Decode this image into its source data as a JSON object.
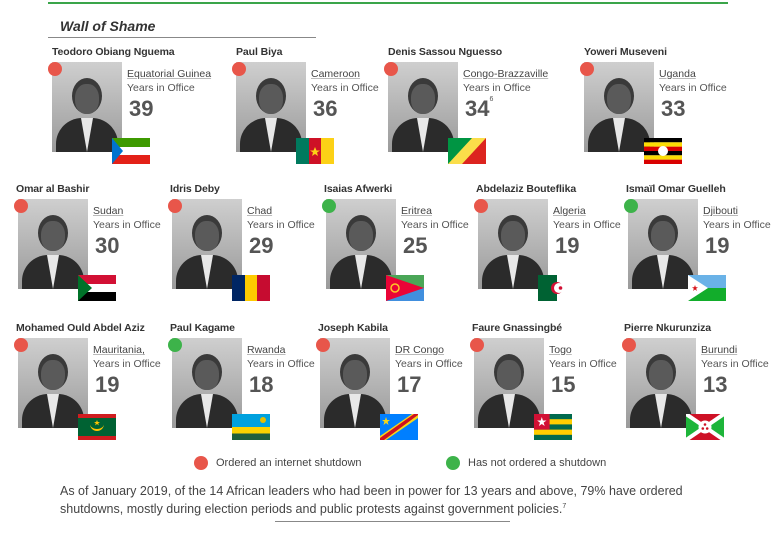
{
  "section_title": "Wall of Shame",
  "labels": {
    "years_in_office": "Years in Office"
  },
  "colors": {
    "shutdown": "#e8564a",
    "no_shutdown": "#3db34a",
    "rule": "#3aa54a"
  },
  "leaders": [
    {
      "name": "Teodoro Obiang Nguema",
      "country": "Equatorial Guinea",
      "years": "39",
      "note": "",
      "status": "shutdown",
      "flag": "equatorial-guinea"
    },
    {
      "name": "Paul Biya",
      "country": "Cameroon",
      "years": "36",
      "note": "",
      "status": "shutdown",
      "flag": "cameroon"
    },
    {
      "name": "Denis Sassou Nguesso",
      "country": "Congo-Brazzaville",
      "years": "34",
      "note": "6",
      "status": "shutdown",
      "flag": "congo"
    },
    {
      "name": "Yoweri Museveni",
      "country": "Uganda",
      "years": "33",
      "note": "",
      "status": "shutdown",
      "flag": "uganda"
    },
    {
      "name": "Omar al Bashir",
      "country": "Sudan",
      "years": "30",
      "note": "",
      "status": "shutdown",
      "flag": "sudan"
    },
    {
      "name": "Idris Deby",
      "country": "Chad",
      "years": "29",
      "note": "",
      "status": "shutdown",
      "flag": "chad"
    },
    {
      "name": "Isaias Afwerki",
      "country": "Eritrea",
      "years": "25",
      "note": "",
      "status": "no_shutdown",
      "flag": "eritrea"
    },
    {
      "name": "Abdelaziz Bouteflika",
      "country": "Algeria",
      "years": "19",
      "note": "",
      "status": "shutdown",
      "flag": "algeria"
    },
    {
      "name": "Ismaïl Omar Guelleh",
      "country": "Djibouti",
      "years": "19",
      "note": "",
      "status": "no_shutdown",
      "flag": "djibouti"
    },
    {
      "name": "Mohamed Ould Abdel Aziz",
      "country": "Mauritania,",
      "years": "19",
      "note": "",
      "status": "shutdown",
      "flag": "mauritania"
    },
    {
      "name": "Paul Kagame",
      "country": "Rwanda",
      "years": "18",
      "note": "",
      "status": "no_shutdown",
      "flag": "rwanda"
    },
    {
      "name": "Joseph Kabila",
      "country": "DR Congo",
      "years": "17",
      "note": "",
      "status": "shutdown",
      "flag": "dr-congo"
    },
    {
      "name": "Faure Gnassingbé",
      "country": "Togo",
      "years": "15",
      "note": "",
      "status": "shutdown",
      "flag": "togo"
    },
    {
      "name": "Pierre Nkurunziza",
      "country": "Burundi",
      "years": "13",
      "note": "",
      "status": "shutdown",
      "flag": "burundi"
    }
  ],
  "legend": {
    "shutdown": "Ordered an internet shutdown",
    "no_shutdown": "Has not ordered a shutdown"
  },
  "footer": {
    "text": "As of January 2019, of the 14 African leaders who had been in power for 13 years and above, 79% have ordered shutdowns, mostly during election periods and public protests against government policies.",
    "note": "7"
  }
}
